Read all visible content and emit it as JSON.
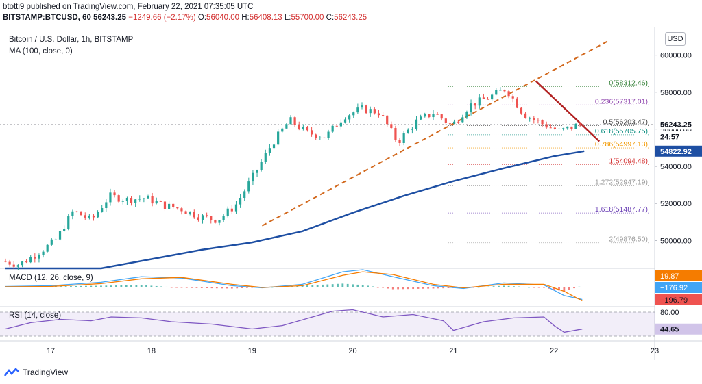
{
  "header": {
    "published_line": "btotti9 published on TradingView.com, February 22, 2021 07:35:05 UTC",
    "symbol": "BITSTAMP:BTCUSD",
    "interval": "60",
    "last": "56243.25",
    "change": "−1249.66 (−2.17%)",
    "open": "56040.00",
    "high": "56408.13",
    "low": "55700.00",
    "close": "56243.25"
  },
  "footer": {
    "brand": "TradingView"
  },
  "colors": {
    "up": "#26a69a",
    "down": "#ef5350",
    "ma": "#1e4fa3",
    "trend_up": "#d2691e",
    "trend_down": "#b22222",
    "grid": "#f0f3fa"
  },
  "chart_data": {
    "type": "candlestick",
    "title": "Bitcoin / U.S. Dollar, 1h, BITSTAMP",
    "ma_label": "MA (100, close, 0)",
    "currency": "USD",
    "ylim": [
      48500,
      61500
    ],
    "y_ticks": [
      "60000.00",
      "58000.00",
      "56000.00",
      "54000.00",
      "52000.00",
      "50000.00"
    ],
    "y_tick_values": [
      60000,
      58000,
      56000,
      54000,
      52000,
      50000
    ],
    "x_ticks": [
      "17",
      "18",
      "19",
      "20",
      "21",
      "22",
      "23"
    ],
    "x_range_days": [
      16.55,
      23.0
    ],
    "candle_path_days": [
      16.55,
      22.28
    ],
    "candle_path_prices": [
      48900,
      48700,
      49300,
      50000,
      51600,
      51100,
      52400,
      52200,
      52300,
      51900,
      51700,
      51300,
      51100,
      51900,
      53500,
      55200,
      56500,
      55800,
      55600,
      56700,
      57100,
      56900,
      55300,
      56400,
      56900,
      56200,
      57300,
      57700,
      58200,
      56800,
      56300,
      55900,
      56243
    ],
    "ma_path_days": [
      16.55,
      17.0,
      17.5,
      18.0,
      18.5,
      19.0,
      19.5,
      20.0,
      20.5,
      21.0,
      21.5,
      22.0,
      22.3
    ],
    "ma_path_prices": [
      47200,
      47700,
      48300,
      49000,
      49500,
      49900,
      50500,
      51500,
      52400,
      53200,
      53900,
      54550,
      54823
    ],
    "current_price": "56243.25",
    "current_price_value": 56243.25,
    "countdown": "24:57",
    "ma_value": "54822.92",
    "ma_value_num": 54822.92,
    "fib_levels": [
      {
        "ratio": "0",
        "label": "0(58312.46)",
        "value": 58312.46,
        "color": "#2e7d32"
      },
      {
        "ratio": "0.236",
        "label": "0.236(57317.01)",
        "value": 57317.01,
        "color": "#8e44ad"
      },
      {
        "ratio": "0.5",
        "label": "0.5(56203.47)",
        "value": 56203.47,
        "color": "#444444"
      },
      {
        "ratio": "0.618",
        "label": "0.618(55705.75)",
        "value": 55705.75,
        "color": "#00897b"
      },
      {
        "ratio": "0.786",
        "label": "0.786(54997.13)",
        "value": 54997.13,
        "color": "#f29900"
      },
      {
        "ratio": "1",
        "label": "1(54094.48)",
        "value": 54094.48,
        "color": "#d32f2f"
      },
      {
        "ratio": "1.272",
        "label": "1.272(52947.19)",
        "value": 52947.19,
        "color": "#999999"
      },
      {
        "ratio": "1.618",
        "label": "1.618(51487.77)",
        "value": 51487.77,
        "color": "#6a3fb5"
      },
      {
        "ratio": "2",
        "label": "2(49876.50)",
        "value": 49876.5,
        "color": "#999999"
      }
    ],
    "fib_start_day": 20.95,
    "trendline_up": {
      "days": [
        19.1,
        22.55
      ],
      "prices": [
        50800,
        60800
      ]
    },
    "trendline_down": {
      "days": [
        21.82,
        22.45
      ],
      "prices": [
        58600,
        55350
      ]
    },
    "macd": {
      "label": "MACD (12, 26, close, 9)",
      "ylim": [
        -280,
        260
      ],
      "values": [
        "19.87",
        "−176.92",
        "−196.79"
      ],
      "value_nums": [
        19.87,
        -176.92,
        -196.79
      ],
      "value_colors": [
        "#f57c00",
        "#42a5f5",
        "#ef5350"
      ],
      "macd_path_days": [
        16.55,
        17.0,
        17.5,
        17.9,
        18.3,
        18.8,
        19.1,
        19.5,
        19.9,
        20.1,
        20.4,
        20.8,
        21.1,
        21.5,
        21.9,
        22.1,
        22.28
      ],
      "macd_path": [
        10,
        20,
        70,
        150,
        130,
        20,
        -10,
        40,
        220,
        250,
        150,
        20,
        -20,
        60,
        30,
        -120,
        -177
      ],
      "signal_path": [
        5,
        10,
        50,
        120,
        140,
        40,
        -5,
        20,
        170,
        220,
        180,
        40,
        -10,
        40,
        40,
        -60,
        -197
      ]
    },
    "rsi": {
      "label": "RSI (14, close)",
      "ylim": [
        20,
        90
      ],
      "upper": "80.00",
      "upper_num": 80,
      "lower_num": 30,
      "value": "44.65",
      "value_num": 44.65,
      "path_days": [
        16.55,
        16.8,
        17.1,
        17.4,
        17.6,
        17.9,
        18.2,
        18.6,
        19.0,
        19.3,
        19.6,
        19.8,
        20.0,
        20.3,
        20.6,
        20.9,
        21.0,
        21.3,
        21.6,
        21.9,
        22.0,
        22.1,
        22.28
      ],
      "path": [
        45,
        58,
        65,
        62,
        70,
        68,
        60,
        55,
        45,
        52,
        70,
        82,
        85,
        70,
        75,
        62,
        42,
        60,
        68,
        70,
        52,
        38,
        44.65
      ]
    }
  }
}
